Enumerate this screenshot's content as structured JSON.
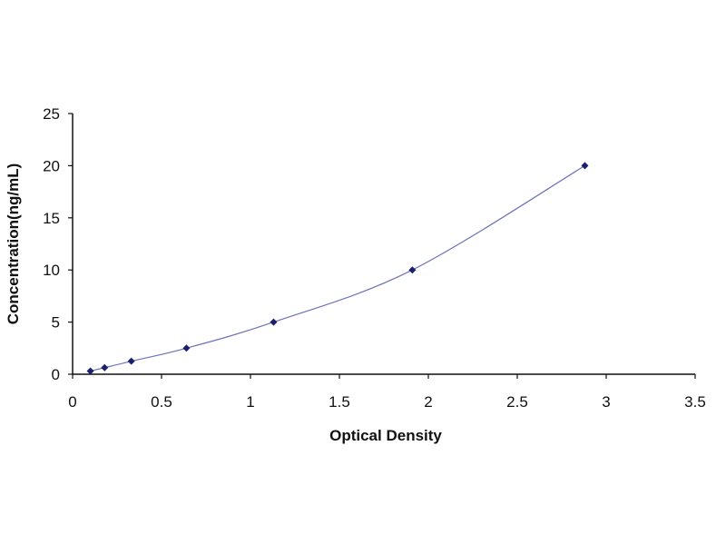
{
  "chart_data": {
    "type": "scatter",
    "title": "",
    "xlabel": "Optical Density",
    "ylabel": "Concentration(ng/mL)",
    "xlim": [
      0,
      3.5
    ],
    "ylim": [
      0,
      25
    ],
    "x_ticks": [
      "0",
      "0.5",
      "1",
      "1.5",
      "2",
      "2.5",
      "3",
      "3.5"
    ],
    "y_ticks": [
      "0",
      "5",
      "10",
      "15",
      "20",
      "25"
    ],
    "grid": false,
    "legend": "none",
    "series": [
      {
        "x": [
          0.1,
          0.18,
          0.33,
          0.64,
          1.13,
          1.91,
          2.88
        ],
        "y": [
          0.31,
          0.63,
          1.25,
          2.5,
          5,
          10,
          20
        ],
        "marker": "diamond",
        "fit": "curve"
      }
    ],
    "colors": {
      "line": "#6e72b8",
      "marker": "#1a1f6e",
      "axis": "#111111"
    }
  }
}
